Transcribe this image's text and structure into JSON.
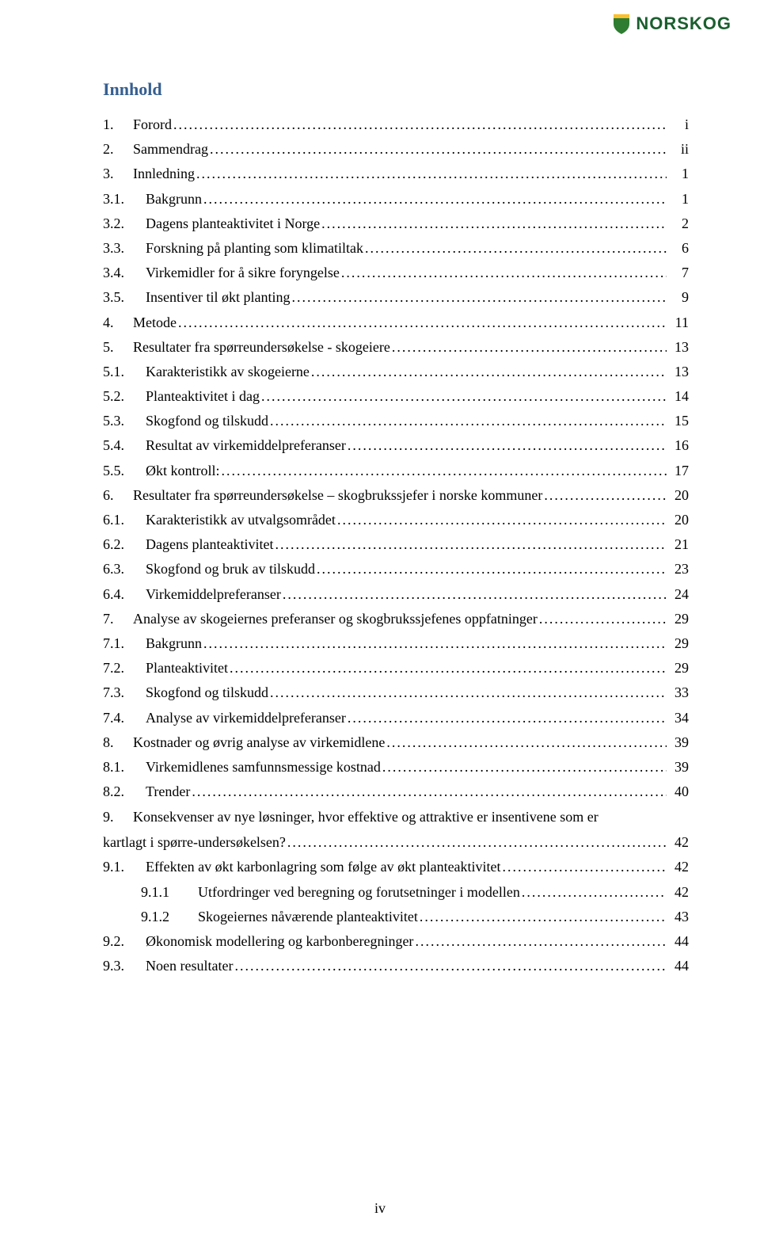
{
  "logo_text": "NORSKOG",
  "title": {
    "text": "Innhold",
    "color": "#365f91",
    "fontsize": 22
  },
  "page_number": "iv",
  "layout": {
    "line_fontsize": 18,
    "line_spacing": 31.2,
    "multiline_spacing": 30,
    "indent_l1_num_width": 36,
    "indent_l2_num_width": 52,
    "indent_l3_num_width": 70,
    "text_color": "#000000"
  },
  "entries": [
    {
      "level": 1,
      "num": "1.",
      "text": "Forord",
      "page": "i"
    },
    {
      "level": 1,
      "num": "2.",
      "text": "Sammendrag",
      "page": "ii"
    },
    {
      "level": 1,
      "num": "3.",
      "text": "Innledning",
      "page": "1"
    },
    {
      "level": 2,
      "num": "3.1.",
      "text": "Bakgrunn",
      "page": "1"
    },
    {
      "level": 2,
      "num": "3.2.",
      "text": "Dagens planteaktivitet i Norge",
      "page": "2"
    },
    {
      "level": 2,
      "num": "3.3.",
      "text": "Forskning på planting som klimatiltak",
      "page": "6"
    },
    {
      "level": 2,
      "num": "3.4.",
      "text": "Virkemidler for å sikre foryngelse",
      "page": "7"
    },
    {
      "level": 2,
      "num": "3.5.",
      "text": "Insentiver til økt planting",
      "page": "9"
    },
    {
      "level": 1,
      "num": "4.",
      "text": "Metode",
      "page": "11"
    },
    {
      "level": 1,
      "num": "5.",
      "text": "Resultater fra spørreundersøkelse - skogeiere",
      "page": "13"
    },
    {
      "level": 2,
      "num": "5.1.",
      "text": "Karakteristikk av skogeierne",
      "page": "13"
    },
    {
      "level": 2,
      "num": "5.2.",
      "text": "Planteaktivitet i dag",
      "page": "14"
    },
    {
      "level": 2,
      "num": "5.3.",
      "text": "Skogfond og tilskudd",
      "page": "15"
    },
    {
      "level": 2,
      "num": "5.4.",
      "text": "Resultat av virkemiddelpreferanser",
      "page": "16"
    },
    {
      "level": 2,
      "num": "5.5.",
      "text": "Økt kontroll:",
      "page": "17"
    },
    {
      "level": 1,
      "num": "6.",
      "text": "Resultater fra spørreundersøkelse – skogbrukssjefer i norske kommuner",
      "page": "20"
    },
    {
      "level": 2,
      "num": "6.1.",
      "text": "Karakteristikk av utvalgsområdet",
      "page": "20"
    },
    {
      "level": 2,
      "num": "6.2.",
      "text": "Dagens planteaktivitet",
      "page": "21"
    },
    {
      "level": 2,
      "num": "6.3.",
      "text": "Skogfond og bruk av tilskudd",
      "page": "23"
    },
    {
      "level": 2,
      "num": "6.4.",
      "text": "Virkemiddelpreferanser",
      "page": "24"
    },
    {
      "level": 1,
      "num": "7.",
      "text": "Analyse av skogeiernes preferanser og skogbrukssjefenes oppfatninger",
      "page": "29"
    },
    {
      "level": 2,
      "num": "7.1.",
      "text": "Bakgrunn",
      "page": "29"
    },
    {
      "level": 2,
      "num": "7.2.",
      "text": "Planteaktivitet",
      "page": "29"
    },
    {
      "level": 2,
      "num": "7.3.",
      "text": "Skogfond og tilskudd",
      "page": "33"
    },
    {
      "level": 2,
      "num": "7.4.",
      "text": "Analyse av virkemiddelpreferanser",
      "page": "34"
    },
    {
      "level": 1,
      "num": "8.",
      "text": "Kostnader og øvrig analyse av virkemidlene",
      "page": "39"
    },
    {
      "level": 2,
      "num": "8.1.",
      "text": "Virkemidlenes samfunnsmessige kostnad",
      "page": "39"
    },
    {
      "level": 2,
      "num": "8.2.",
      "text": "Trender",
      "page": "40"
    },
    {
      "level": 1,
      "num": "9.",
      "text": "Konsekvenser av nye løsninger, hvor effektive og attraktive er insentivene som er",
      "text2": "kartlagt i spørre-undersøkelsen?",
      "page": "42",
      "multiline": true
    },
    {
      "level": 2,
      "num": "9.1.",
      "text": "Effekten av økt karbonlagring som følge av økt planteaktivitet",
      "page": "42"
    },
    {
      "level": 3,
      "num": "9.1.1",
      "text": "Utfordringer ved beregning og forutsetninger i modellen",
      "page": "42"
    },
    {
      "level": 3,
      "num": "9.1.2",
      "text": "Skogeiernes nåværende planteaktivitet",
      "page": "43"
    },
    {
      "level": 2,
      "num": "9.2.",
      "text": "Økonomisk modellering og karbonberegninger",
      "page": "44"
    },
    {
      "level": 2,
      "num": "9.3.",
      "text": "Noen resultater",
      "page": "44"
    }
  ]
}
